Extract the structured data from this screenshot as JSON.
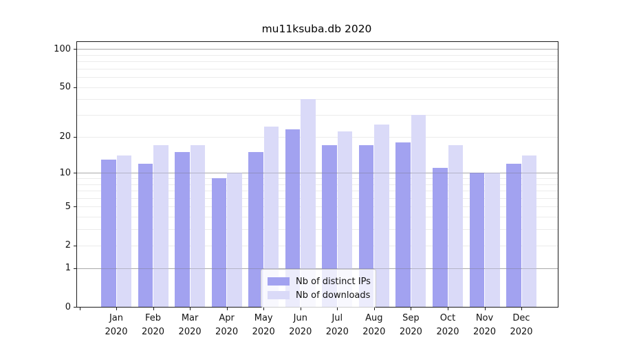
{
  "title": "mu11ksuba.db 2020",
  "chart_data": {
    "type": "bar",
    "title": "mu11ksuba.db 2020",
    "yscale": "log1p",
    "ylim": [
      0,
      113
    ],
    "yticks": [
      100,
      50,
      20,
      10,
      5,
      2,
      1,
      0
    ],
    "grid": true,
    "grid_minor_values": [
      2,
      3,
      4,
      5,
      6,
      7,
      8,
      9,
      20,
      30,
      40,
      50,
      60,
      70,
      80,
      90
    ],
    "grid_major_values": [
      1,
      10,
      100
    ],
    "categories": [
      "Jan",
      "Feb",
      "Mar",
      "Apr",
      "May",
      "Jun",
      "Jul",
      "Aug",
      "Sep",
      "Oct",
      "Nov",
      "Dec"
    ],
    "year_label": "2020",
    "xlabel": "",
    "ylabel": "",
    "legend_position": "bottom-center",
    "series": [
      {
        "name": "Nb of distinct IPs",
        "color": "#a2a2f0",
        "values": [
          13,
          12,
          15,
          9,
          15,
          23,
          17,
          17,
          18,
          11,
          10,
          12
        ]
      },
      {
        "name": "Nb of downloads",
        "color": "#dadaf8",
        "values": [
          14,
          17,
          17,
          10,
          24,
          40,
          22,
          25,
          30,
          17,
          10,
          14
        ]
      }
    ]
  }
}
